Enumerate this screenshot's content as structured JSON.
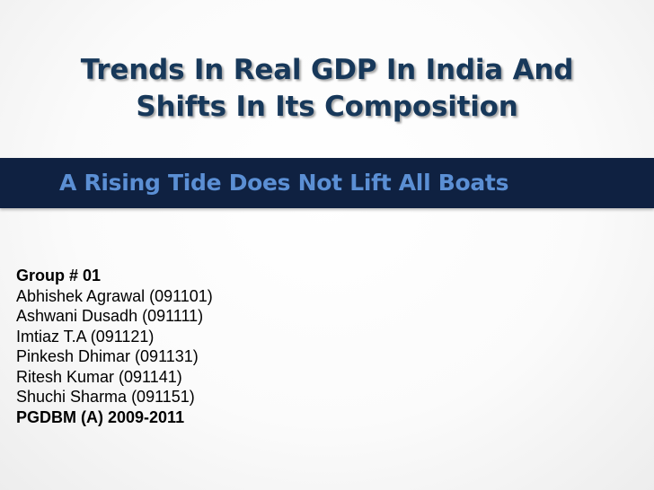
{
  "slide": {
    "title_lines": [
      "Trends In Real GDP In India And",
      "Shifts In Its Composition"
    ],
    "subtitle": "A Rising Tide Does Not Lift All Boats",
    "group_label": "Group # 01",
    "members": [
      "Abhishek Agrawal (091101)",
      "Ashwani Dusadh (091111)",
      "Imtiaz T.A (091121)",
      "Pinkesh Dhimar (091131)",
      "Ritesh Kumar (091141)",
      "Shuchi Sharma (091151)"
    ],
    "program": "PGDBM (A) 2009-2011"
  },
  "colors": {
    "title": "#17385a",
    "band": "#0f2141",
    "subtitle": "#5b8fd4"
  }
}
